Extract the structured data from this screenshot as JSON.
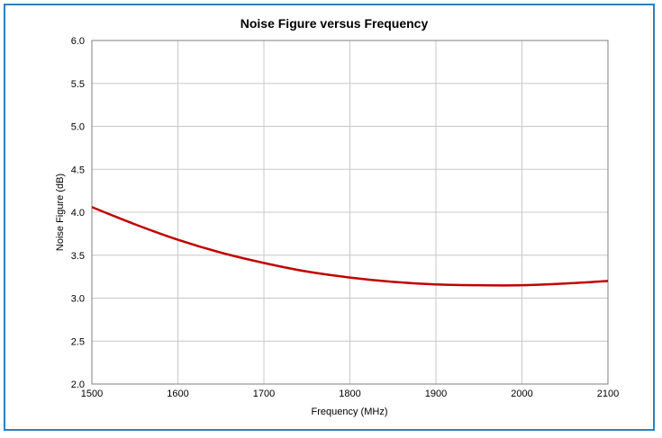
{
  "chart_data": {
    "type": "line",
    "title": "Noise Figure versus Frequency",
    "xlabel": "Frequency (MHz)",
    "ylabel": "Noise Figure (dB)",
    "xlim": [
      1500,
      2100
    ],
    "ylim": [
      2.0,
      6.0
    ],
    "x_ticks": [
      "1500",
      "1600",
      "1700",
      "1800",
      "1900",
      "2000",
      "2100"
    ],
    "y_ticks": [
      "2.0",
      "2.5",
      "3.0",
      "3.5",
      "4.0",
      "4.5",
      "5.0",
      "5.5",
      "6.0"
    ],
    "grid": true,
    "legend": "none",
    "series": [
      {
        "color": "#c00000",
        "x": [
          1500,
          1550,
          1600,
          1650,
          1700,
          1750,
          1800,
          1850,
          1900,
          1950,
          2000,
          2050,
          2100
        ],
        "y": [
          4.06,
          3.86,
          3.68,
          3.53,
          3.41,
          3.31,
          3.24,
          3.19,
          3.16,
          3.15,
          3.15,
          3.17,
          3.2
        ]
      }
    ]
  }
}
